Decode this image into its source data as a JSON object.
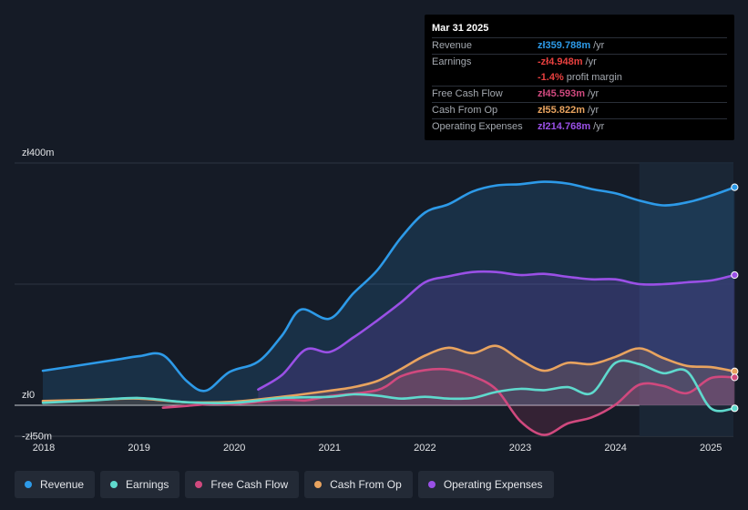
{
  "tooltip": {
    "date": "Mar 31 2025",
    "rows": [
      {
        "label": "Revenue",
        "value": "zł359.788m",
        "unit": "/yr",
        "color": "#2d9ae8"
      },
      {
        "label": "Earnings",
        "value": "-zł4.948m",
        "unit": "/yr",
        "color": "#e8403f"
      },
      {
        "label": "",
        "value": "-1.4%",
        "unit": "profit margin",
        "color": "#e8403f"
      },
      {
        "label": "Free Cash Flow",
        "value": "zł45.593m",
        "unit": "/yr",
        "color": "#d0497e"
      },
      {
        "label": "Cash From Op",
        "value": "zł55.822m",
        "unit": "/yr",
        "color": "#e8a35f"
      },
      {
        "label": "Operating Expenses",
        "value": "zł214.768m",
        "unit": "/yr",
        "color": "#9a50e6"
      }
    ]
  },
  "legend": [
    {
      "label": "Revenue",
      "color": "#2d9ae8"
    },
    {
      "label": "Earnings",
      "color": "#5fd9cd"
    },
    {
      "label": "Free Cash Flow",
      "color": "#d0497e"
    },
    {
      "label": "Cash From Op",
      "color": "#e8a35f"
    },
    {
      "label": "Operating Expenses",
      "color": "#9a50e6"
    }
  ],
  "chart_data": {
    "type": "area",
    "title": "",
    "currency": "zł",
    "y_tick_labels": [
      {
        "value": 400,
        "label": "zł400m"
      },
      {
        "value": 0,
        "label": "zł0"
      },
      {
        "value": -50,
        "label": "-zł50m"
      }
    ],
    "ylim": [
      -50,
      400
    ],
    "x_ticks": [
      {
        "value": 2018,
        "label": "2018"
      },
      {
        "value": 2019,
        "label": "2019"
      },
      {
        "value": 2020,
        "label": "2020"
      },
      {
        "value": 2021,
        "label": "2021"
      },
      {
        "value": 2022,
        "label": "2022"
      },
      {
        "value": 2023,
        "label": "2023"
      },
      {
        "value": 2024,
        "label": "2024"
      },
      {
        "value": 2025,
        "label": "2025"
      }
    ],
    "xlim": [
      2017.7,
      2025.25
    ],
    "forecast_start": 2024.25,
    "series": [
      {
        "name": "Revenue",
        "color": "#2d9ae8",
        "fill": true,
        "z": 1,
        "points": [
          [
            2017.99,
            57
          ],
          [
            2018.25,
            63
          ],
          [
            2018.5,
            69
          ],
          [
            2018.75,
            75
          ],
          [
            2019.0,
            81
          ],
          [
            2019.25,
            83
          ],
          [
            2019.5,
            40
          ],
          [
            2019.7,
            24
          ],
          [
            2019.95,
            55
          ],
          [
            2020.25,
            72
          ],
          [
            2020.5,
            115
          ],
          [
            2020.7,
            158
          ],
          [
            2021.0,
            143
          ],
          [
            2021.25,
            185
          ],
          [
            2021.5,
            223
          ],
          [
            2021.75,
            277
          ],
          [
            2022.0,
            318
          ],
          [
            2022.25,
            332
          ],
          [
            2022.5,
            353
          ],
          [
            2022.75,
            363
          ],
          [
            2023.0,
            365
          ],
          [
            2023.25,
            369
          ],
          [
            2023.5,
            366
          ],
          [
            2023.75,
            357
          ],
          [
            2024.0,
            350
          ],
          [
            2024.25,
            338
          ],
          [
            2024.5,
            330
          ],
          [
            2024.75,
            335
          ],
          [
            2025.0,
            346
          ],
          [
            2025.25,
            360
          ]
        ]
      },
      {
        "name": "Operating Expenses",
        "color": "#9a50e6",
        "fill": true,
        "z": 2,
        "points": [
          [
            2020.25,
            26
          ],
          [
            2020.5,
            50
          ],
          [
            2020.75,
            92
          ],
          [
            2021.0,
            88
          ],
          [
            2021.25,
            112
          ],
          [
            2021.5,
            140
          ],
          [
            2021.75,
            170
          ],
          [
            2022.0,
            203
          ],
          [
            2022.25,
            213
          ],
          [
            2022.5,
            220
          ],
          [
            2022.75,
            220
          ],
          [
            2023.0,
            215
          ],
          [
            2023.25,
            217
          ],
          [
            2023.5,
            212
          ],
          [
            2023.75,
            208
          ],
          [
            2024.0,
            208
          ],
          [
            2024.25,
            200
          ],
          [
            2024.5,
            200
          ],
          [
            2024.75,
            203
          ],
          [
            2025.0,
            206
          ],
          [
            2025.25,
            215
          ]
        ]
      },
      {
        "name": "Cash From Op",
        "color": "#e8a35f",
        "fill": true,
        "z": 3,
        "points": [
          [
            2017.99,
            7
          ],
          [
            2018.5,
            9
          ],
          [
            2019.0,
            11
          ],
          [
            2019.5,
            5
          ],
          [
            2020.0,
            6
          ],
          [
            2020.5,
            14
          ],
          [
            2021.0,
            24
          ],
          [
            2021.25,
            30
          ],
          [
            2021.5,
            40
          ],
          [
            2021.75,
            60
          ],
          [
            2022.0,
            82
          ],
          [
            2022.25,
            95
          ],
          [
            2022.5,
            86
          ],
          [
            2022.75,
            98
          ],
          [
            2023.0,
            75
          ],
          [
            2023.25,
            57
          ],
          [
            2023.5,
            70
          ],
          [
            2023.75,
            68
          ],
          [
            2024.0,
            80
          ],
          [
            2024.25,
            94
          ],
          [
            2024.5,
            78
          ],
          [
            2024.75,
            65
          ],
          [
            2025.0,
            63
          ],
          [
            2025.25,
            56
          ]
        ]
      },
      {
        "name": "Free Cash Flow",
        "color": "#d0497e",
        "fill": true,
        "z": 4,
        "points": [
          [
            2019.25,
            -4
          ],
          [
            2019.5,
            -1
          ],
          [
            2019.75,
            2
          ],
          [
            2020.0,
            2
          ],
          [
            2020.5,
            9
          ],
          [
            2020.75,
            8
          ],
          [
            2021.0,
            15
          ],
          [
            2021.5,
            25
          ],
          [
            2021.75,
            48
          ],
          [
            2022.0,
            58
          ],
          [
            2022.25,
            59
          ],
          [
            2022.5,
            48
          ],
          [
            2022.75,
            26
          ],
          [
            2023.0,
            -26
          ],
          [
            2023.25,
            -49
          ],
          [
            2023.5,
            -30
          ],
          [
            2023.75,
            -20
          ],
          [
            2024.0,
            1
          ],
          [
            2024.25,
            34
          ],
          [
            2024.5,
            32
          ],
          [
            2024.75,
            20
          ],
          [
            2025.0,
            45
          ],
          [
            2025.25,
            46
          ]
        ]
      },
      {
        "name": "Earnings",
        "color": "#5fd9cd",
        "fill": false,
        "z": 5,
        "points": [
          [
            2017.99,
            4
          ],
          [
            2018.5,
            8
          ],
          [
            2019.0,
            12
          ],
          [
            2019.5,
            5
          ],
          [
            2020.0,
            4
          ],
          [
            2020.5,
            12
          ],
          [
            2021.0,
            14
          ],
          [
            2021.25,
            18
          ],
          [
            2021.5,
            16
          ],
          [
            2021.75,
            11
          ],
          [
            2022.0,
            14
          ],
          [
            2022.25,
            11
          ],
          [
            2022.5,
            12
          ],
          [
            2022.75,
            22
          ],
          [
            2023.0,
            27
          ],
          [
            2023.25,
            25
          ],
          [
            2023.5,
            30
          ],
          [
            2023.75,
            20
          ],
          [
            2024.0,
            70
          ],
          [
            2024.25,
            68
          ],
          [
            2024.5,
            53
          ],
          [
            2024.75,
            56
          ],
          [
            2025.0,
            -5
          ],
          [
            2025.25,
            -5
          ]
        ]
      }
    ]
  }
}
